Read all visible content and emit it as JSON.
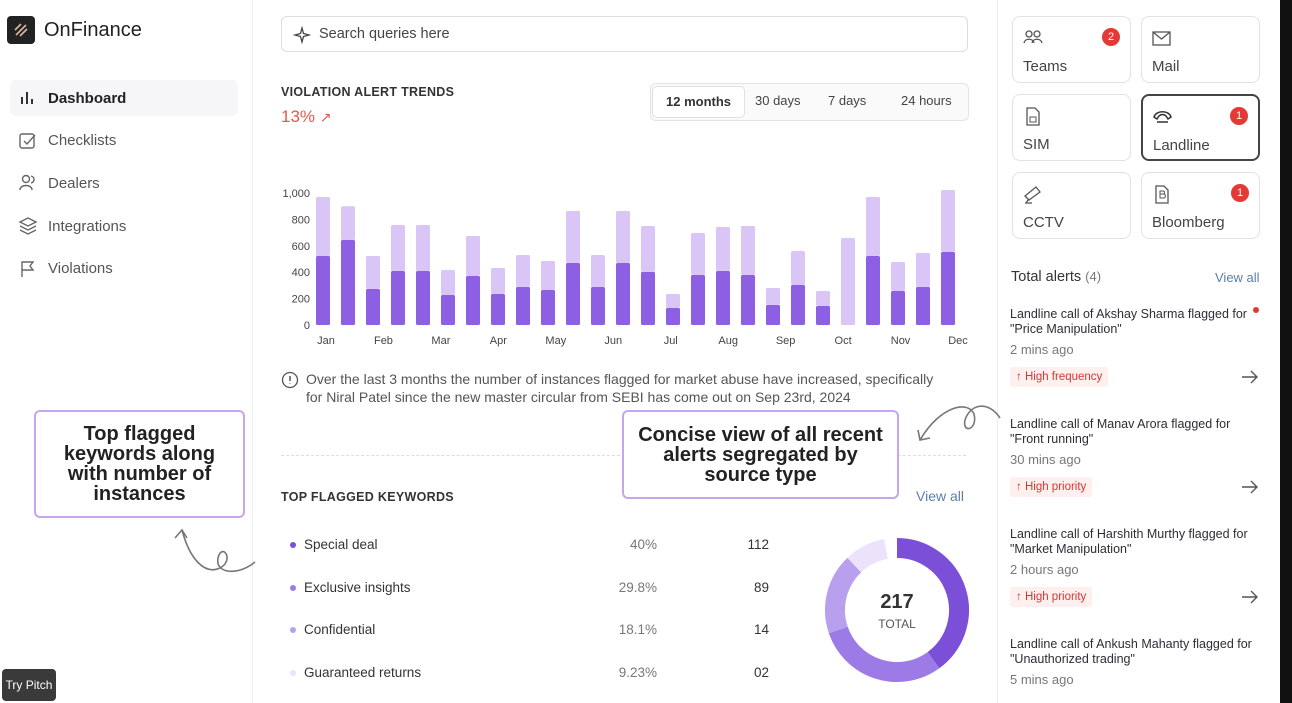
{
  "brand": "OnFinance",
  "nav": [
    "Dashboard",
    "Checklists",
    "Dealers",
    "Integrations",
    "Violations"
  ],
  "try_pitch": "Try Pitch",
  "search_placeholder": "Search queries here",
  "trends": {
    "title": "VIOLATION ALERT TRENDS",
    "change": "13%",
    "ranges": [
      "12 months",
      "30 days",
      "7 days",
      "24 hours"
    ],
    "note": "Over the last 3 months the number of instances flagged for market abuse have increased, specifically for Niral Patel since the new master circular from SEBI has come out on Sep 23rd, 2024"
  },
  "chart_data": {
    "type": "stacked-bar",
    "x_labels": [
      "Jan",
      "Feb",
      "Mar",
      "Apr",
      "May",
      "Jun",
      "Jul",
      "Aug",
      "Sep",
      "Oct",
      "Nov",
      "Dec"
    ],
    "series": [
      {
        "color": "#8d5fe3",
        "values": [
          523,
          644,
          273,
          409,
          409,
          227,
          371,
          235,
          288,
          265,
          470,
          288,
          470,
          402,
          129,
          379,
          409,
          379,
          152,
          303,
          144,
          0,
          523,
          258,
          288,
          553
        ]
      },
      {
        "color": "#d9c6f6",
        "values": [
          447,
          256,
          250,
          349,
          349,
          190,
          303,
          197,
          242,
          220,
          394,
          242,
          394,
          348,
          106,
          318,
          333,
          371,
          128,
          258,
          114,
          659,
          447,
          219,
          257,
          470
        ]
      }
    ],
    "ylim": [
      0,
      1000
    ],
    "yticks": [
      0,
      200,
      400,
      600,
      800,
      {
        "value": 1000,
        "label": "1,000"
      }
    ]
  },
  "keywords": {
    "title": "TOP FLAGGED KEYWORDS",
    "view_all": "View all",
    "names": [
      "Special deal",
      "Exclusive insights",
      "Confidential",
      "Guaranteed returns"
    ],
    "percents": [
      40,
      29.8,
      18.1,
      9.23
    ],
    "percent_labels": [
      "40%",
      "29.8%",
      "18.1%",
      "9.23%"
    ],
    "counts": [
      "112",
      "89",
      "14",
      "02"
    ],
    "colors": [
      "#7c4fd8",
      "#9d7be6",
      "#b9a0ef",
      "#ece2fb"
    ],
    "total": "217",
    "total_label": "TOTAL"
  },
  "channels": [
    {
      "name": "Teams",
      "badge": "2"
    },
    {
      "name": "Mail"
    },
    {
      "name": "SIM"
    },
    {
      "name": "Landline",
      "badge": "1"
    },
    {
      "name": "CCTV"
    },
    {
      "name": "Bloomberg",
      "badge": "1"
    }
  ],
  "alerts": {
    "title": "Total alerts",
    "count": "(4)",
    "view_all": "View all",
    "items": [
      {
        "text": "Landline call of Akshay Sharma flagged for \"Price Manipulation\"",
        "time": "2 mins ago",
        "tag": "High frequency"
      },
      {
        "text": "Landline call of Manav Arora flagged for \"Front running\"",
        "time": "30 mins ago",
        "tag": "High priority"
      },
      {
        "text": "Landline call of Harshith Murthy flagged for \"Market Manipulation\"",
        "time": "2 hours ago",
        "tag": "High priority"
      },
      {
        "text": "Landline call of Ankush Mahanty flagged for \"Unauthorized trading\"",
        "time": "5 mins ago"
      }
    ]
  },
  "annotations": [
    "Top flagged keywords along with number of instances",
    "Concise view of all recent alerts segregated by source type"
  ]
}
